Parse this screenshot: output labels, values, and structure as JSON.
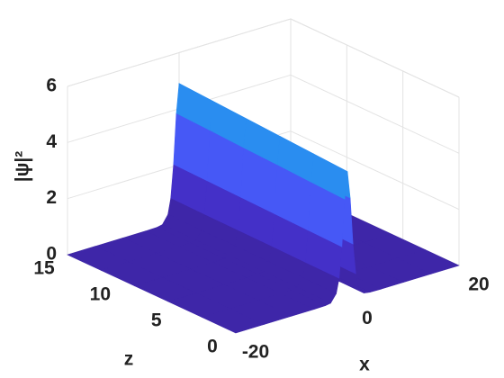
{
  "chart_data": {
    "type": "surface",
    "xlabel": "x",
    "ylabel": "z",
    "zlabel": "|ψ|²",
    "x": [
      -20,
      -15,
      -10,
      -6,
      -4,
      -3,
      -2,
      -1.5,
      -1,
      -0.5,
      0,
      0.5,
      1,
      1.5,
      2,
      3,
      4,
      6,
      10,
      15,
      20
    ],
    "y": [
      0,
      3,
      6,
      9,
      12,
      15
    ],
    "values": [
      [
        0,
        0,
        0,
        0,
        0.01,
        0.04,
        0.32,
        0.82,
        1.91,
        3.58,
        4.55,
        3.58,
        1.91,
        0.82,
        0.32,
        0.04,
        0.01,
        0,
        0,
        0,
        0
      ],
      [
        0,
        0,
        0,
        0,
        0.01,
        0.05,
        0.33,
        0.83,
        1.94,
        3.63,
        4.62,
        3.63,
        1.94,
        0.83,
        0.33,
        0.05,
        0.01,
        0,
        0,
        0,
        0
      ],
      [
        0,
        0,
        0,
        0,
        0.01,
        0.05,
        0.33,
        0.85,
        1.97,
        3.69,
        4.69,
        3.69,
        1.97,
        0.85,
        0.33,
        0.05,
        0.01,
        0,
        0,
        0,
        0
      ],
      [
        0,
        0,
        0,
        0,
        0.01,
        0.05,
        0.34,
        0.86,
        2.0,
        3.74,
        4.76,
        3.74,
        2.0,
        0.86,
        0.34,
        0.05,
        0.01,
        0,
        0,
        0,
        0
      ],
      [
        0,
        0,
        0,
        0,
        0.01,
        0.05,
        0.34,
        0.87,
        2.03,
        3.8,
        4.83,
        3.8,
        2.03,
        0.87,
        0.34,
        0.05,
        0.01,
        0,
        0,
        0,
        0
      ],
      [
        0,
        0,
        0,
        0,
        0.01,
        0.05,
        0.35,
        0.89,
        2.06,
        3.85,
        4.9,
        3.85,
        2.06,
        0.89,
        0.35,
        0.05,
        0.01,
        0,
        0,
        0,
        0
      ]
    ],
    "xlim": [
      -20,
      20
    ],
    "xticks": [
      -20,
      0,
      20
    ],
    "ylim": [
      0,
      15
    ],
    "yticks": [
      0,
      5,
      10,
      15
    ],
    "zlim": [
      0,
      6
    ],
    "zticks": [
      0,
      2,
      4,
      6
    ],
    "grid": true,
    "colormap": [
      "#3e26a8",
      "#4430c8",
      "#4740e4",
      "#4658f6",
      "#3a72fb",
      "#2a8df0",
      "#1fa5e3",
      "#1cb8dc"
    ]
  }
}
